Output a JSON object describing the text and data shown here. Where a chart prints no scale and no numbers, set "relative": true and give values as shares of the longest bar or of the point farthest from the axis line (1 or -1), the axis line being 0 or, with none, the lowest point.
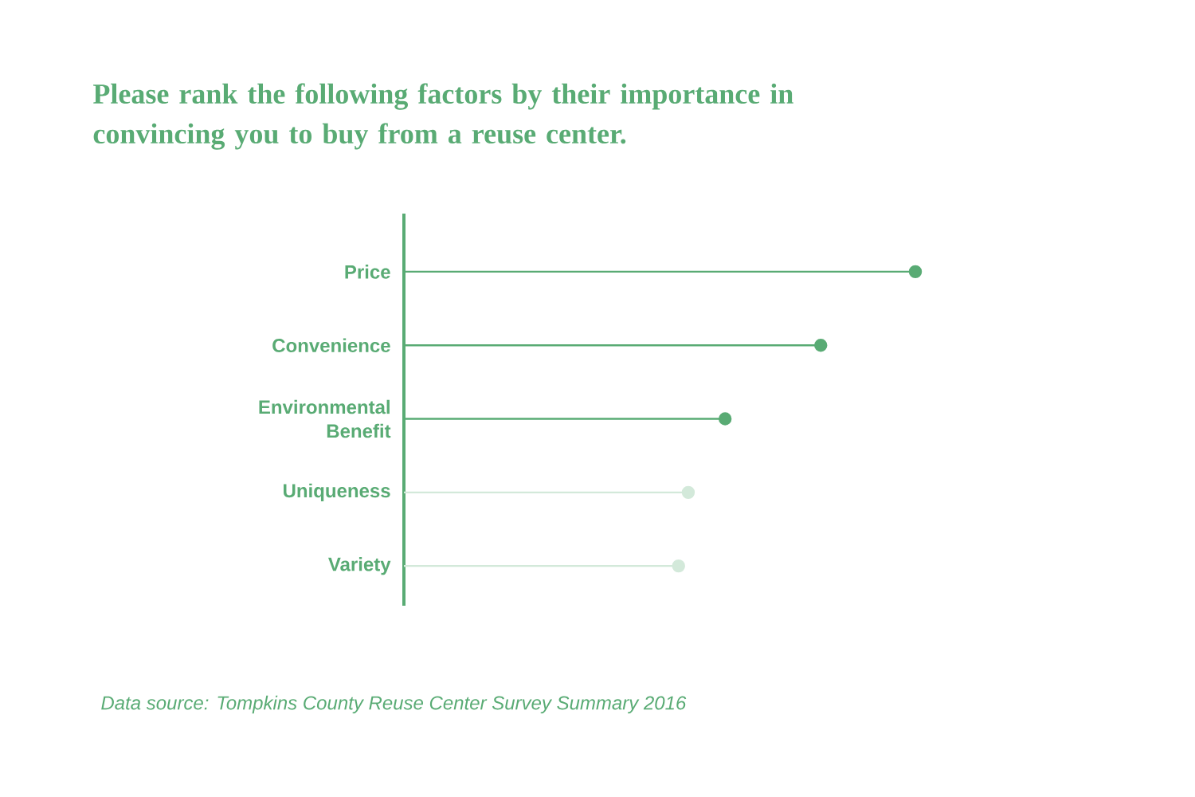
{
  "chart_data": {
    "type": "lollipop",
    "orientation": "horizontal",
    "relative": true,
    "title": "Please rank the following factors by their importance in convincing you to buy from a reuse center.",
    "categories": [
      "Price",
      "Convenience",
      "Environmental Benefit",
      "Uniqueness",
      "Variety"
    ],
    "values": [
      1,
      0.815,
      0.628,
      0.556,
      0.537
    ],
    "colors": [
      "#59ab74",
      "#59ab74",
      "#59ab74",
      "#d3e9da",
      "#d3e9da"
    ],
    "annotations": [
      "*Data source: Tompkins County Reuse Center Survey Summary 2016*"
    ]
  }
}
